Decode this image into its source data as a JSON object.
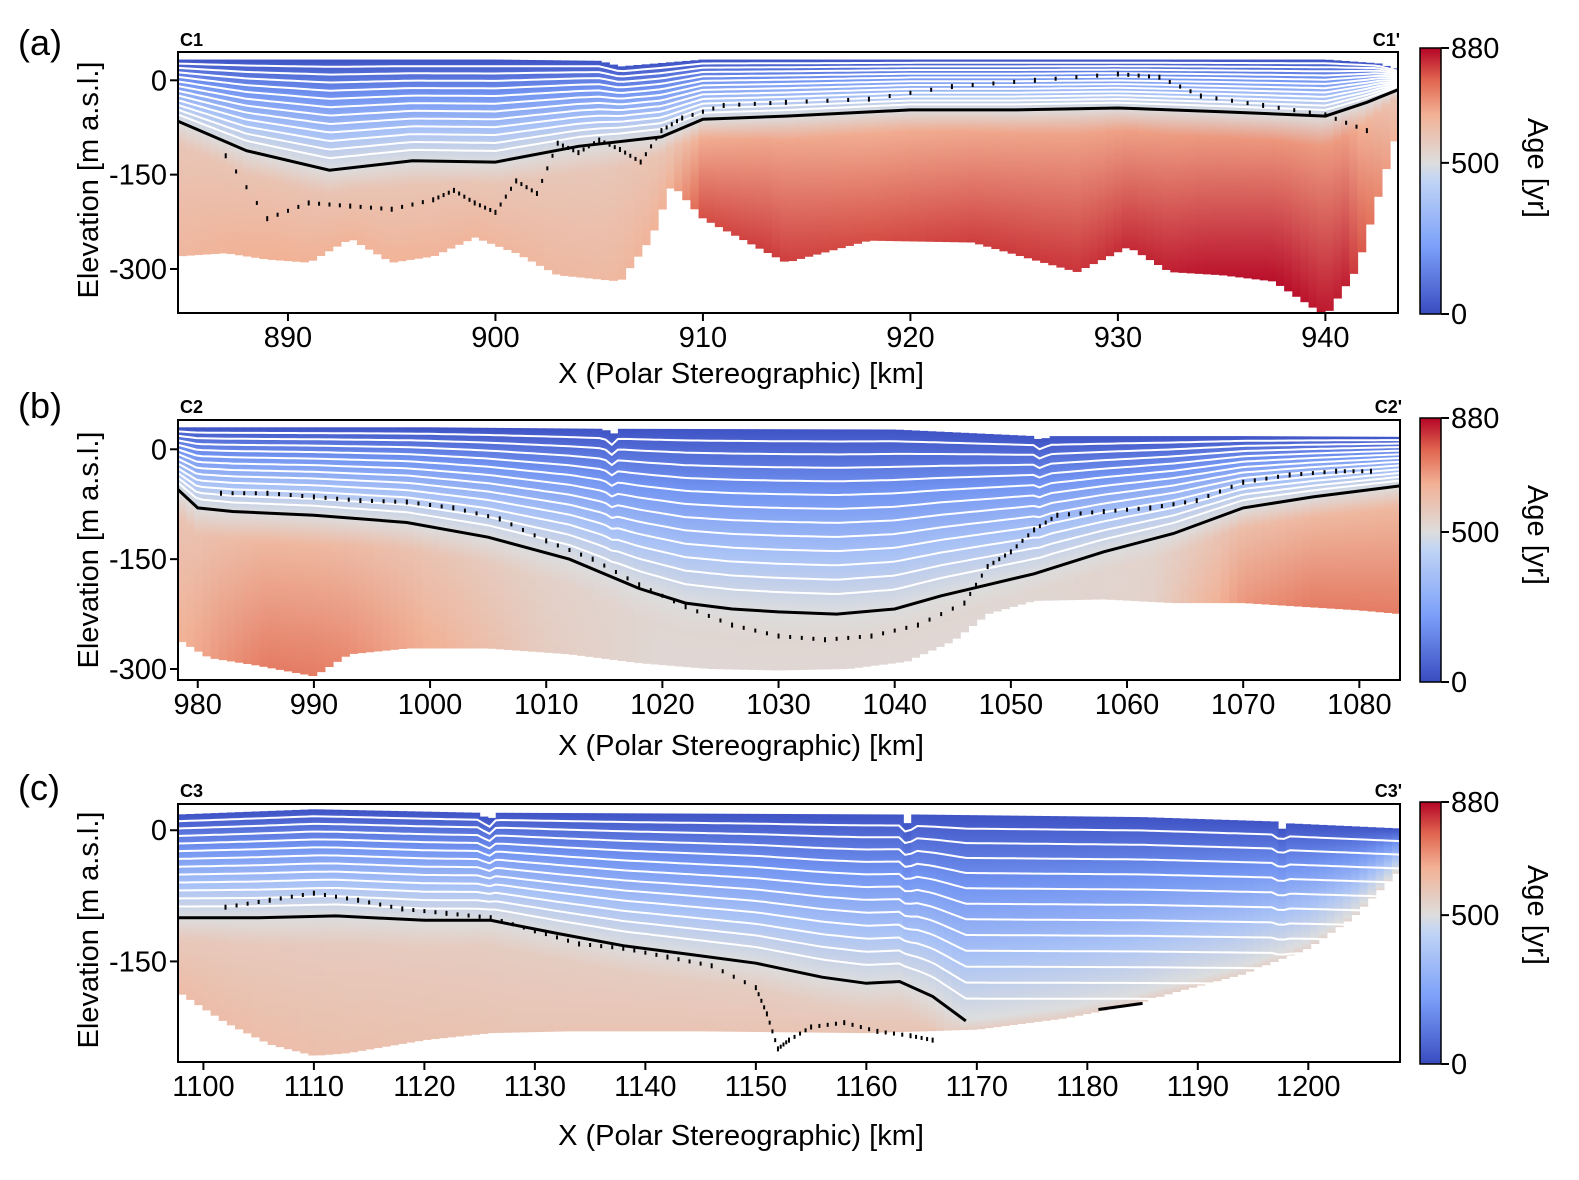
{
  "chart_data": [
    {
      "type": "heatmap",
      "panel_label": "(a)",
      "left_label": "C1",
      "right_label": "C1'",
      "xlabel": "X (Polar Stereographic) [km]",
      "ylabel": "Elevation [m a.s.l.]",
      "x_ticks": [
        890,
        900,
        910,
        920,
        930,
        940
      ],
      "y_ticks": [
        0,
        -150,
        -300
      ],
      "xlim": [
        884.7,
        943.5
      ],
      "ylim": [
        -370,
        45
      ],
      "colorbar": {
        "label": "Age [yr]",
        "ticks": [
          0,
          500,
          880
        ],
        "range": [
          0,
          880
        ],
        "colormap": [
          "#3a4cc0",
          "#dddddd",
          "#b40426"
        ]
      },
      "surface": {
        "x": [
          884.7,
          890,
          900,
          905,
          906,
          910,
          920,
          930,
          940,
          942.5,
          943.5
        ],
        "y": [
          33,
          33,
          33,
          31,
          22,
          33,
          33,
          33,
          33,
          27,
          17
        ]
      },
      "base": {
        "x": [
          884.7,
          887,
          889,
          891,
          893,
          895,
          897,
          899,
          901,
          903,
          906,
          907.5,
          908.5,
          910,
          914,
          918,
          923,
          928,
          930.5,
          932.5,
          935,
          937.5,
          940,
          941.5,
          943.5
        ],
        "y": [
          -280,
          -275,
          -285,
          -290,
          -252,
          -290,
          -280,
          -250,
          -275,
          -310,
          -320,
          -250,
          -165,
          -220,
          -290,
          -255,
          -258,
          -305,
          -265,
          -305,
          -310,
          -320,
          -375,
          -300,
          -75
        ]
      },
      "black_layer": {
        "x": [
          884.7,
          888,
          892,
          896,
          900,
          904,
          908,
          910,
          914,
          920,
          925,
          930,
          935,
          940,
          942,
          943.5
        ],
        "y": [
          -65,
          -112,
          -143,
          -128,
          -130,
          -105,
          -90,
          -62,
          -57,
          -47,
          -47,
          -44,
          -50,
          -57,
          -35,
          -15
        ]
      },
      "age_field": {
        "x": [
          884.7,
          889,
          893,
          897,
          901,
          905,
          908.5,
          910,
          913,
          918,
          924,
          929,
          934,
          938,
          941,
          943.5
        ],
        "deep_age": [
          640,
          660,
          650,
          650,
          640,
          630,
          660,
          800,
          820,
          800,
          820,
          830,
          860,
          870,
          850,
          640
        ]
      },
      "radar_points": {
        "x": [
          887,
          889,
          891,
          893,
          895,
          897,
          898,
          899,
          900,
          901,
          902,
          903,
          904,
          905,
          906,
          907,
          908,
          909,
          911,
          914,
          918,
          922,
          926,
          930,
          932,
          934,
          937,
          940,
          942
        ],
        "y": [
          -120,
          -220,
          -195,
          -200,
          -205,
          -190,
          -175,
          -195,
          -210,
          -160,
          -180,
          -100,
          -115,
          -95,
          -110,
          -130,
          -80,
          -60,
          -40,
          -35,
          -30,
          -10,
          0,
          10,
          5,
          -25,
          -40,
          -55,
          -80
        ]
      },
      "isochrones": 12
    },
    {
      "type": "heatmap",
      "panel_label": "(b)",
      "left_label": "C2",
      "right_label": "C2'",
      "xlabel": "X (Polar Stereographic) [km]",
      "ylabel": "Elevation [m a.s.l.]",
      "x_ticks": [
        980,
        990,
        1000,
        1010,
        1020,
        1030,
        1040,
        1050,
        1060,
        1070,
        1080
      ],
      "y_ticks": [
        0,
        -150,
        -300
      ],
      "xlim": [
        978.3,
        1083.5
      ],
      "ylim": [
        -315,
        40
      ],
      "colorbar": {
        "label": "Age [yr]",
        "ticks": [
          0,
          500,
          880
        ],
        "range": [
          0,
          880
        ],
        "colormap": [
          "#3a4cc0",
          "#dddddd",
          "#b40426"
        ]
      },
      "surface": {
        "x": [
          978.3,
          1000,
          1015,
          1015.6,
          1016.2,
          1040,
          1052,
          1052.6,
          1053.2,
          1070,
          1083.5
        ],
        "y": [
          30,
          30,
          28,
          18,
          28,
          27,
          18,
          10,
          18,
          18,
          17
        ]
      },
      "base": {
        "x": [
          978.3,
          981,
          985,
          990,
          993,
          998,
          1005,
          1012,
          1018,
          1024,
          1030,
          1036,
          1041,
          1045,
          1048,
          1052,
          1058,
          1064,
          1070,
          1075,
          1080,
          1083.5
        ],
        "y": [
          -260,
          -285,
          -295,
          -310,
          -280,
          -272,
          -272,
          -280,
          -292,
          -300,
          -302,
          -300,
          -290,
          -262,
          -225,
          -207,
          -205,
          -210,
          -210,
          -215,
          -220,
          -225
        ]
      },
      "black_layer": {
        "x": [
          978.3,
          980,
          983,
          990,
          998,
          1005,
          1012,
          1018,
          1022,
          1026,
          1030,
          1035,
          1040,
          1044,
          1048,
          1052,
          1058,
          1064,
          1070,
          1076,
          1083.5
        ],
        "y": [
          -55,
          -80,
          -85,
          -90,
          -100,
          -120,
          -150,
          -190,
          -210,
          -218,
          -222,
          -225,
          -218,
          -200,
          -185,
          -170,
          -140,
          -115,
          -80,
          -65,
          -50
        ]
      },
      "age_field": {
        "x": [
          978.3,
          982,
          986,
          990,
          995,
          1002,
          1010,
          1020,
          1035,
          1050,
          1062,
          1066,
          1070,
          1076,
          1083.5
        ],
        "deep_age": [
          650,
          700,
          740,
          740,
          700,
          640,
          560,
          520,
          520,
          520,
          540,
          620,
          700,
          740,
          740
        ]
      },
      "radar_points": {
        "x": [
          982,
          986,
          990,
          994,
          998,
          1002,
          1006,
          1010,
          1014,
          1018,
          1022,
          1026,
          1030,
          1034,
          1038,
          1042,
          1046,
          1048,
          1050,
          1052,
          1054,
          1058,
          1062,
          1066,
          1070,
          1074,
          1078,
          1081
        ],
        "y": [
          -60,
          -60,
          -65,
          -70,
          -72,
          -80,
          -95,
          -125,
          -150,
          -185,
          -215,
          -240,
          -255,
          -260,
          -255,
          -240,
          -210,
          -160,
          -140,
          -110,
          -90,
          -85,
          -80,
          -70,
          -45,
          -35,
          -30,
          -30
        ]
      },
      "isochrones": 12
    },
    {
      "type": "heatmap",
      "panel_label": "(c)",
      "left_label": "C3",
      "right_label": "C3'",
      "xlabel": "X (Polar Stereographic) [km]",
      "ylabel": "Elevation [m a.s.l.]",
      "x_ticks": [
        1100,
        1110,
        1120,
        1130,
        1140,
        1150,
        1160,
        1170,
        1180,
        1190,
        1200
      ],
      "y_ticks": [
        0,
        -150
      ],
      "xlim": [
        1097.7,
        1208.3
      ],
      "ylim": [
        -265,
        30
      ],
      "colorbar": {
        "label": "Age [yr]",
        "ticks": [
          0,
          500,
          880
        ],
        "range": [
          0,
          880
        ],
        "colormap": [
          "#3a4cc0",
          "#dddddd",
          "#b40426"
        ]
      },
      "surface": {
        "x": [
          1097.7,
          1110,
          1125,
          1125.8,
          1126.5,
          1163,
          1163.7,
          1164.4,
          1185,
          1197,
          1197.5,
          1198,
          1208.3
        ],
        "y": [
          18,
          24,
          20,
          10,
          20,
          18,
          8,
          18,
          15,
          10,
          0,
          8,
          2
        ]
      },
      "base": {
        "x": [
          1097.7,
          1102,
          1106,
          1110,
          1113,
          1120,
          1126,
          1133,
          1145,
          1160,
          1170,
          1178,
          1184,
          1188,
          1194,
          1200,
          1204,
          1208.3
        ],
        "y": [
          -185,
          -220,
          -245,
          -258,
          -255,
          -240,
          -232,
          -230,
          -230,
          -232,
          -228,
          -215,
          -200,
          -185,
          -165,
          -135,
          -100,
          -45
        ]
      },
      "black_layer": {
        "x": [
          1097.7,
          1105,
          1112,
          1120,
          1126,
          1132,
          1138,
          1144,
          1150,
          1156,
          1160,
          1163,
          1166,
          1169
        ],
        "y": [
          -100,
          -100,
          -98,
          -103,
          -103,
          -118,
          -132,
          -142,
          -152,
          -168,
          -175,
          -173,
          -190,
          -218
        ]
      },
      "black_layer_2": {
        "x": [
          1181,
          1185
        ],
        "y": [
          -205,
          -198
        ]
      },
      "age_field": {
        "x": [
          1097.7,
          1110,
          1130,
          1150,
          1170,
          1185,
          1195,
          1208.3
        ],
        "deep_age": [
          620,
          610,
          590,
          590,
          590,
          580,
          560,
          540
        ]
      },
      "radar_points": {
        "x": [
          1102,
          1106,
          1110,
          1114,
          1118,
          1122,
          1126,
          1130,
          1134,
          1138,
          1142,
          1146,
          1150,
          1151,
          1152,
          1153,
          1155,
          1158,
          1161,
          1164,
          1166
        ],
        "y": [
          -88,
          -80,
          -72,
          -80,
          -90,
          -95,
          -100,
          -115,
          -130,
          -135,
          -145,
          -155,
          -180,
          -210,
          -250,
          -240,
          -225,
          -220,
          -230,
          -235,
          -240
        ]
      },
      "isochrones": 12
    }
  ]
}
